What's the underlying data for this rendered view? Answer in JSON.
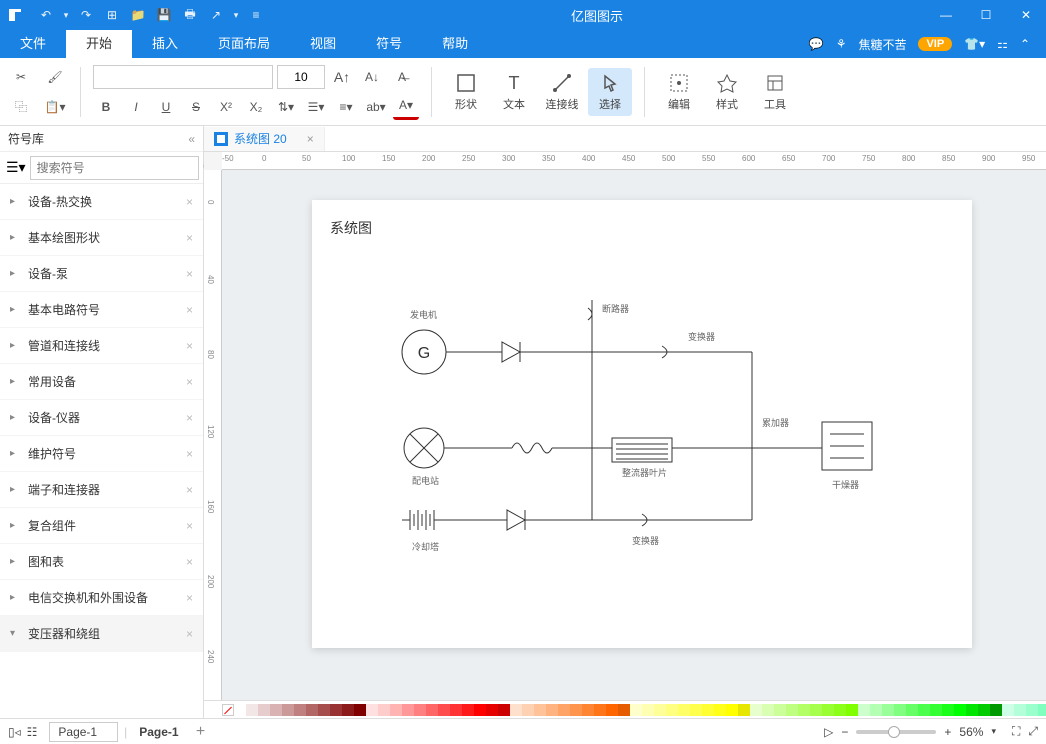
{
  "app": {
    "title": "亿图图示"
  },
  "menus": {
    "file": "文件",
    "home": "开始",
    "insert": "插入",
    "pageLayout": "页面布局",
    "view": "视图",
    "symbol": "符号",
    "help": "帮助"
  },
  "user": {
    "name": "焦糖不苦",
    "vip": "VIP"
  },
  "ribbon": {
    "fontSize": "10",
    "shape": "形状",
    "text": "文本",
    "connector": "连接线",
    "select": "选择",
    "edit": "编辑",
    "style": "样式",
    "tools": "工具"
  },
  "leftPanel": {
    "title": "符号库",
    "searchPlaceholder": "搜索符号",
    "items": [
      "设备-热交换",
      "基本绘图形状",
      "设备-泵",
      "基本电路符号",
      "管道和连接线",
      "常用设备",
      "设备-仪器",
      "维护符号",
      "端子和连接器",
      "复合组件",
      "图和表",
      "电信交换机和外围设备"
    ],
    "expandedItem": "变压器和绕组"
  },
  "document": {
    "tabName": "系统图 20"
  },
  "diagram": {
    "title": "系统图",
    "labels": {
      "generator": "发电机",
      "breaker": "断路器",
      "transformer1": "变换器",
      "substation": "配电站",
      "rectifier": "整流器叶片",
      "accumulator": "累加器",
      "dryer": "干燥器",
      "cooling": "冷却塔",
      "transformer2": "变换器"
    }
  },
  "rulerH": [
    "-50",
    "0",
    "50",
    "100",
    "150",
    "200",
    "250",
    "300",
    "350",
    "400",
    "450",
    "500",
    "550",
    "600",
    "650",
    "700",
    "750",
    "800",
    "850",
    "900",
    "950"
  ],
  "rulerV": [
    "0",
    "40",
    "80",
    "120",
    "160",
    "200",
    "240"
  ],
  "palette": [
    "#ffffff",
    "#f2e6e6",
    "#e6cccc",
    "#d9b3b3",
    "#cc9999",
    "#c08080",
    "#b36666",
    "#a64d4d",
    "#993333",
    "#8d1a1a",
    "#800000",
    "#ffe0e0",
    "#ffcccc",
    "#ffb3b3",
    "#ff9999",
    "#ff8080",
    "#ff6666",
    "#ff4d4d",
    "#ff3333",
    "#ff1a1a",
    "#ff0000",
    "#e60000",
    "#cc0000",
    "#ffe0cc",
    "#ffd1b3",
    "#ffc299",
    "#ffb380",
    "#ffa366",
    "#ff944d",
    "#ff8533",
    "#ff751a",
    "#ff6600",
    "#e65c00",
    "#ffffcc",
    "#ffffb3",
    "#ffff99",
    "#ffff80",
    "#ffff66",
    "#ffff4d",
    "#ffff33",
    "#ffff1a",
    "#ffff00",
    "#e6e600",
    "#e6ffcc",
    "#d9ffb3",
    "#ccff99",
    "#bfff80",
    "#b3ff66",
    "#a6ff4d",
    "#99ff33",
    "#8cff1a",
    "#80ff00",
    "#ccffcc",
    "#b3ffb3",
    "#99ff99",
    "#80ff80",
    "#66ff66",
    "#4dff4d",
    "#33ff33",
    "#1aff1a",
    "#00ff00",
    "#00e600",
    "#00cc00",
    "#009900",
    "#ccffe6",
    "#b3ffd9",
    "#99ffcc",
    "#80ffbf",
    "#66ffb3",
    "#00ff80",
    "#ccffff",
    "#b3ffff",
    "#99ffff",
    "#80ffff",
    "#66ffff",
    "#00ffff",
    "#00e6e6",
    "#00cccc",
    "#cce6ff",
    "#b3d9ff",
    "#99ccff",
    "#80bfff",
    "#66b3ff",
    "#3399ff",
    "#0080ff",
    "#0066cc",
    "#004d99",
    "#ccccff",
    "#b3b3ff",
    "#9999ff",
    "#8080ff",
    "#6666ff",
    "#3333ff",
    "#0000ff",
    "#0000cc",
    "#e6ccff",
    "#d9b3ff",
    "#cc99ff",
    "#bf80ff",
    "#b366ff",
    "#9933ff",
    "#8000ff",
    "#ffccff",
    "#ffb3ff",
    "#ff99ff",
    "#ff80ff",
    "#ff66ff",
    "#ff00ff",
    "#cc00cc",
    "#ffcce6",
    "#ffb3d9",
    "#ff99cc",
    "#ff80bf",
    "#ff3399",
    "#ff0080",
    "#f2f2f2",
    "#e6e6e6",
    "#cccccc",
    "#b3b3b3",
    "#999999",
    "#808080",
    "#666666",
    "#4d4d4d",
    "#333333",
    "#1a1a1a",
    "#000000"
  ],
  "status": {
    "pageSelect": "Page-1",
    "pageTab": "Page-1",
    "zoom": "56%"
  }
}
